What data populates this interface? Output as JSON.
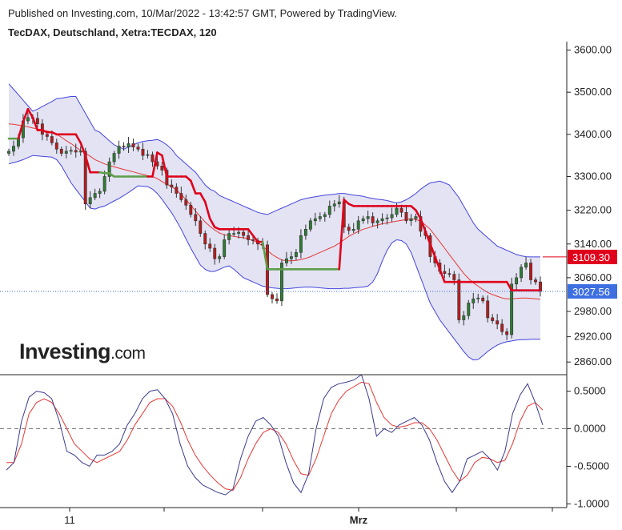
{
  "header": {
    "published": "Published on Investing.com, 10/Mar/2022 - 13:42:57 GMT, Powered by TradingView.",
    "symbol": "TecDAX, Deutschland, Xetra:TECDAX, 120"
  },
  "logo": {
    "main": "Investing",
    "suffix": ".com"
  },
  "colors": {
    "up": "#2e7d32",
    "down": "#b71c1c",
    "band_fill": "#e3e3f3",
    "band_line": "#4444dd",
    "mid_line": "#e53935",
    "supertrend_down": "#e0001b",
    "supertrend_up": "#5e9e4a",
    "osc_main": "#3a3a8c",
    "osc_signal": "#e53935",
    "price_tag_red": "#e0001b",
    "price_tag_blue": "#3d6fe0"
  },
  "chart_data": [
    {
      "type": "candlestick",
      "title": "TecDAX, Deutschland, Xetra:TECDAX, 120",
      "ylim": [
        2830,
        3620
      ],
      "y_ticks": [
        "3600.00",
        "3500.00",
        "3400.00",
        "3300.00",
        "3220.00",
        "3140.00",
        "3060.00",
        "2980.00",
        "2920.00",
        "2860.00"
      ],
      "y_tick_values": [
        3600,
        3500,
        3400,
        3300,
        3220,
        3140,
        3060,
        2980,
        2920,
        2860
      ],
      "x_labels": [
        "11",
        "Mrz"
      ],
      "price_tags": [
        {
          "label": "3109.30",
          "value": 3109.3,
          "color": "red"
        },
        {
          "label": "3027.56",
          "value": 3027.56,
          "color": "blue"
        }
      ],
      "close": [
        3360,
        3372,
        3392,
        3432,
        3440,
        3438,
        3425,
        3400,
        3395,
        3380,
        3365,
        3355,
        3360,
        3362,
        3358,
        3360,
        3235,
        3250,
        3260,
        3265,
        3300,
        3335,
        3355,
        3372,
        3370,
        3378,
        3370,
        3365,
        3350,
        3352,
        3335,
        3325,
        3315,
        3280,
        3275,
        3260,
        3245,
        3232,
        3210,
        3195,
        3165,
        3140,
        3130,
        3105,
        3110,
        3150,
        3165,
        3165,
        3168,
        3160,
        3150,
        3148,
        3140,
        3138,
        3020,
        3010,
        3005,
        3095,
        3105,
        3110,
        3120,
        3160,
        3175,
        3195,
        3200,
        3205,
        3210,
        3230,
        3235,
        3240,
        3180,
        3172,
        3175,
        3195,
        3200,
        3205,
        3190,
        3195,
        3200,
        3202,
        3210,
        3225,
        3215,
        3195,
        3200,
        3205,
        3170,
        3160,
        3110,
        3095,
        3075,
        3070,
        3068,
        3055,
        2960,
        2970,
        3000,
        3010,
        3012,
        3005,
        2965,
        2958,
        2950,
        2932,
        2925,
        3045,
        3060,
        3085,
        3095,
        3055,
        3050,
        3027.56
      ],
      "bollinger_upper": [
        3520,
        3507,
        3494,
        3481,
        3468,
        3455,
        3460,
        3466,
        3472,
        3478,
        3485,
        3486,
        3488,
        3490,
        3490,
        3470,
        3450,
        3430,
        3410,
        3405,
        3395,
        3385,
        3375,
        3370,
        3365,
        3370,
        3375,
        3380,
        3383,
        3385,
        3386,
        3388,
        3383,
        3375,
        3365,
        3350,
        3340,
        3330,
        3320,
        3310,
        3295,
        3280,
        3270,
        3265,
        3255,
        3250,
        3245,
        3240,
        3235,
        3230,
        3225,
        3220,
        3215,
        3212,
        3210,
        3215,
        3220,
        3225,
        3230,
        3235,
        3240,
        3245,
        3248,
        3250,
        3252,
        3254,
        3256,
        3257,
        3258,
        3260,
        3260,
        3258,
        3256,
        3255,
        3253,
        3250,
        3248,
        3246,
        3245,
        3243,
        3240,
        3238,
        3240,
        3245,
        3252,
        3260,
        3270,
        3278,
        3285,
        3287,
        3289,
        3285,
        3280,
        3265,
        3250,
        3230,
        3210,
        3190,
        3175,
        3165,
        3155,
        3145,
        3135,
        3130,
        3125,
        3120,
        3115,
        3112,
        3110,
        3109.3,
        3109.3,
        3109.3
      ],
      "bollinger_lower": [
        3330,
        3333,
        3336,
        3340,
        3345,
        3350,
        3349,
        3348,
        3347,
        3346,
        3340,
        3325,
        3305,
        3285,
        3270,
        3255,
        3240,
        3225,
        3223,
        3227,
        3230,
        3236,
        3242,
        3248,
        3255,
        3262,
        3270,
        3278,
        3277,
        3276,
        3270,
        3260,
        3246,
        3230,
        3214,
        3195,
        3175,
        3152,
        3130,
        3110,
        3090,
        3080,
        3075,
        3075,
        3080,
        3085,
        3088,
        3080,
        3070,
        3060,
        3055,
        3050,
        3045,
        3040,
        3038,
        3036,
        3035,
        3034,
        3034,
        3035,
        3036,
        3037,
        3038,
        3038,
        3037,
        3036,
        3035,
        3034,
        3034,
        3034,
        3035,
        3035,
        3036,
        3037,
        3038,
        3040,
        3050,
        3070,
        3100,
        3125,
        3143,
        3150,
        3148,
        3140,
        3120,
        3090,
        3060,
        3030,
        3000,
        2980,
        2960,
        2945,
        2930,
        2915,
        2900,
        2885,
        2872,
        2865,
        2866,
        2875,
        2885,
        2893,
        2900,
        2905,
        2908,
        2910,
        2912,
        2913,
        2913,
        2914,
        2914,
        2914
      ],
      "moving_average": [
        3425,
        3424,
        3422,
        3420,
        3418,
        3415,
        3413,
        3410,
        3408,
        3405,
        3400,
        3393,
        3385,
        3378,
        3370,
        3362,
        3355,
        3348,
        3340,
        3335,
        3330,
        3326,
        3323,
        3320,
        3317,
        3314,
        3311,
        3308,
        3305,
        3302,
        3300,
        3295,
        3288,
        3282,
        3276,
        3268,
        3258,
        3245,
        3232,
        3218,
        3205,
        3192,
        3182,
        3173,
        3166,
        3162,
        3160,
        3158,
        3156,
        3155,
        3152,
        3148,
        3143,
        3135,
        3125,
        3115,
        3108,
        3102,
        3100,
        3100,
        3101,
        3103,
        3106,
        3110,
        3115,
        3120,
        3125,
        3130,
        3135,
        3142,
        3150,
        3158,
        3164,
        3170,
        3175,
        3178,
        3182,
        3185,
        3188,
        3190,
        3192,
        3194,
        3196,
        3198,
        3200,
        3198,
        3194,
        3185,
        3175,
        3160,
        3145,
        3130,
        3115,
        3100,
        3085,
        3070,
        3058,
        3048,
        3040,
        3032,
        3025,
        3020,
        3016,
        3012,
        3010,
        3010,
        3011,
        3012,
        3012,
        3011,
        3010,
        3009
      ],
      "supertrend": [
        3390,
        3390,
        3390,
        3430,
        3460,
        3440,
        3410,
        3410,
        3405,
        3405,
        3400,
        3400,
        3400,
        3400,
        3400,
        3380,
        3350,
        3310,
        3310,
        3310,
        3308,
        3308,
        3300,
        3300,
        3300,
        3300,
        3300,
        3300,
        3300,
        3300,
        3300,
        3357,
        3350,
        3300,
        3300,
        3300,
        3300,
        3300,
        3290,
        3260,
        3260,
        3240,
        3200,
        3180,
        3175,
        3175,
        3175,
        3175,
        3175,
        3175,
        3175,
        3160,
        3145,
        3145,
        3080,
        3080,
        3080,
        3080,
        3080,
        3080,
        3080,
        3080,
        3080,
        3080,
        3080,
        3080,
        3080,
        3080,
        3080,
        3080,
        3245,
        3235,
        3230,
        3230,
        3230,
        3230,
        3230,
        3230,
        3230,
        3230,
        3230,
        3230,
        3230,
        3230,
        3230,
        3220,
        3200,
        3170,
        3140,
        3110,
        3080,
        3050,
        3050,
        3050,
        3050,
        3050,
        3050,
        3050,
        3050,
        3050,
        3050,
        3050,
        3050,
        3050,
        3050,
        3030,
        3030,
        3030,
        3030,
        3030,
        3030,
        3030
      ],
      "supertrend_direction": [
        1,
        1,
        1,
        -1,
        -1,
        -1,
        -1,
        -1,
        -1,
        -1,
        -1,
        -1,
        -1,
        -1,
        -1,
        -1,
        -1,
        -1,
        -1,
        -1,
        1,
        1,
        1,
        1,
        1,
        1,
        1,
        1,
        1,
        1,
        -1,
        -1,
        -1,
        -1,
        -1,
        -1,
        -1,
        -1,
        -1,
        -1,
        -1,
        -1,
        -1,
        -1,
        -1,
        -1,
        -1,
        -1,
        -1,
        -1,
        -1,
        -1,
        -1,
        -1,
        1,
        1,
        1,
        1,
        1,
        1,
        1,
        1,
        1,
        1,
        1,
        1,
        1,
        1,
        1,
        1,
        -1,
        -1,
        -1,
        -1,
        -1,
        -1,
        -1,
        -1,
        -1,
        -1,
        -1,
        -1,
        -1,
        -1,
        -1,
        -1,
        -1,
        -1,
        -1,
        -1,
        -1,
        -1,
        -1,
        -1,
        -1,
        -1,
        -1,
        -1,
        -1,
        -1,
        -1,
        -1,
        -1,
        -1,
        -1,
        -1,
        -1,
        -1,
        -1,
        -1,
        -1,
        -1
      ]
    },
    {
      "type": "line",
      "ylim": [
        -1.05,
        0.72
      ],
      "y_ticks": [
        "0.5000",
        "0.0000",
        "-0.5000",
        "-1.0000"
      ],
      "y_tick_values": [
        0.5,
        0,
        -0.5,
        -1
      ],
      "x_labels": [
        "11",
        "Mrz"
      ],
      "series": [
        {
          "values": [
            -0.55,
            -0.45,
            0.1,
            0.42,
            0.5,
            0.48,
            0.4,
            0.1,
            -0.3,
            -0.35,
            -0.45,
            -0.5,
            -0.35,
            -0.35,
            -0.3,
            -0.2,
            0.05,
            0.2,
            0.4,
            0.5,
            0.52,
            0.4,
            0.2,
            -0.2,
            -0.5,
            -0.65,
            -0.75,
            -0.8,
            -0.85,
            -0.88,
            -0.8,
            -0.4,
            -0.1,
            0.1,
            0.15,
            0.05,
            -0.1,
            -0.45,
            -0.72,
            -0.85,
            -0.6,
            0.0,
            0.4,
            0.55,
            0.6,
            0.62,
            0.65,
            0.72,
            0.4,
            -0.1,
            0.0,
            -0.05,
            0.05,
            0.1,
            0.15,
            0.05,
            -0.15,
            -0.45,
            -0.7,
            -0.85,
            -0.7,
            -0.4,
            -0.35,
            -0.3,
            -0.4,
            -0.55,
            -0.3,
            0.2,
            0.45,
            0.6,
            0.35,
            0.05
          ]
        },
        {
          "values": [
            -0.45,
            -0.45,
            -0.2,
            0.2,
            0.35,
            0.4,
            0.35,
            0.2,
            0.0,
            -0.2,
            -0.3,
            -0.4,
            -0.45,
            -0.4,
            -0.35,
            -0.3,
            -0.15,
            0.05,
            0.2,
            0.35,
            0.4,
            0.4,
            0.3,
            0.1,
            -0.15,
            -0.35,
            -0.5,
            -0.62,
            -0.72,
            -0.8,
            -0.82,
            -0.65,
            -0.4,
            -0.2,
            -0.05,
            0.0,
            -0.05,
            -0.2,
            -0.42,
            -0.6,
            -0.62,
            -0.4,
            -0.1,
            0.2,
            0.38,
            0.5,
            0.56,
            0.62,
            0.6,
            0.35,
            0.15,
            0.05,
            0.02,
            0.04,
            0.08,
            0.08,
            0.0,
            -0.15,
            -0.35,
            -0.55,
            -0.7,
            -0.62,
            -0.45,
            -0.38,
            -0.4,
            -0.45,
            -0.42,
            -0.2,
            0.1,
            0.3,
            0.35,
            0.25
          ]
        }
      ]
    }
  ]
}
